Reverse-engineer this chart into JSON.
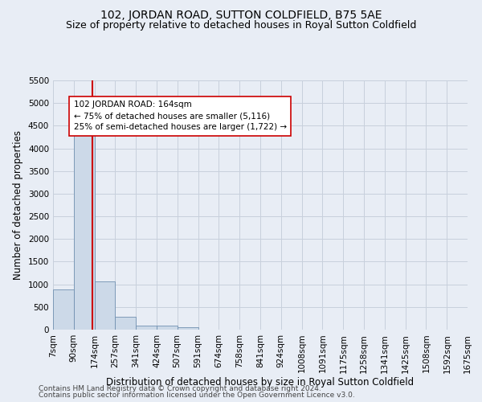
{
  "title": "102, JORDAN ROAD, SUTTON COLDFIELD, B75 5AE",
  "subtitle": "Size of property relative to detached houses in Royal Sutton Coldfield",
  "xlabel": "Distribution of detached houses by size in Royal Sutton Coldfield",
  "ylabel": "Number of detached properties",
  "footnote1": "Contains HM Land Registry data © Crown copyright and database right 2024.",
  "footnote2": "Contains public sector information licensed under the Open Government Licence v3.0.",
  "bin_edges": [
    7,
    90,
    174,
    257,
    341,
    424,
    507,
    591,
    674,
    758,
    841,
    924,
    1008,
    1091,
    1175,
    1258,
    1341,
    1425,
    1508,
    1592,
    1675
  ],
  "bar_values": [
    880,
    4550,
    1060,
    280,
    85,
    80,
    50,
    0,
    0,
    0,
    0,
    0,
    0,
    0,
    0,
    0,
    0,
    0,
    0,
    0
  ],
  "bar_color": "#ccd9e8",
  "bar_edge_color": "#7090b0",
  "property_sqm": 164,
  "property_line_color": "#cc0000",
  "annotation_text": "102 JORDAN ROAD: 164sqm\n← 75% of detached houses are smaller (5,116)\n25% of semi-detached houses are larger (1,722) →",
  "annotation_box_color": "#ffffff",
  "annotation_box_edge_color": "#cc0000",
  "ylim": [
    0,
    5500
  ],
  "yticks": [
    0,
    500,
    1000,
    1500,
    2000,
    2500,
    3000,
    3500,
    4000,
    4500,
    5000,
    5500
  ],
  "grid_color": "#c8d0dc",
  "bg_color": "#e8edf5",
  "title_fontsize": 10,
  "subtitle_fontsize": 9,
  "tick_fontsize": 7.5,
  "label_fontsize": 8.5,
  "footnote_fontsize": 6.5
}
